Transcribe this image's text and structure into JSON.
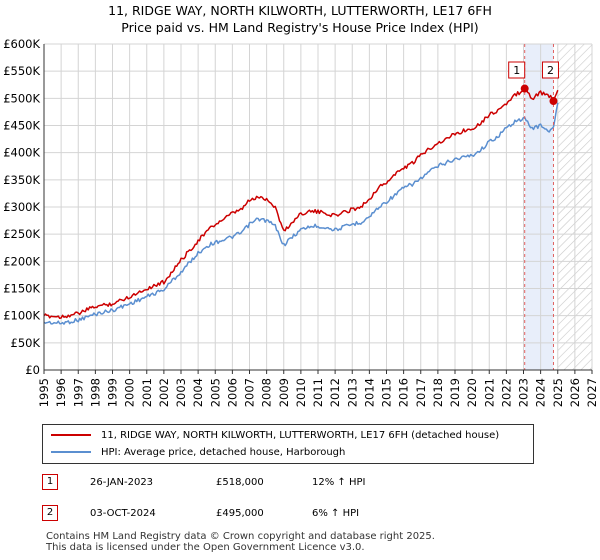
{
  "title_line1": "11, RIDGE WAY, NORTH KILWORTH, LUTTERWORTH, LE17 6FH",
  "title_line2": "Price paid vs. HM Land Registry's House Price Index (HPI)",
  "colors": {
    "property": "#cc0000",
    "hpi": "#5b8fd0",
    "shade": "#e8eefa",
    "grid": "#d4d4d4"
  },
  "chart_data": {
    "type": "line",
    "title": "11, RIDGE WAY, NORTH KILWORTH, LUTTERWORTH, LE17 6FH — Price paid vs. HM Land Registry's House Price Index (HPI)",
    "xlabel": "",
    "ylabel": "",
    "xlim": [
      1995,
      2027
    ],
    "ylim": [
      0,
      600000
    ],
    "x_ticks": [
      "1995",
      "1996",
      "1997",
      "1998",
      "1999",
      "2000",
      "2001",
      "2002",
      "2003",
      "2004",
      "2005",
      "2006",
      "2007",
      "2008",
      "2009",
      "2010",
      "2011",
      "2012",
      "2013",
      "2014",
      "2015",
      "2016",
      "2017",
      "2018",
      "2019",
      "2020",
      "2021",
      "2022",
      "2023",
      "2024",
      "2025",
      "2026",
      "2027"
    ],
    "y_ticks": [
      {
        "value": 0,
        "label": "£0"
      },
      {
        "value": 50000,
        "label": "£50K"
      },
      {
        "value": 100000,
        "label": "£100K"
      },
      {
        "value": 150000,
        "label": "£150K"
      },
      {
        "value": 200000,
        "label": "£200K"
      },
      {
        "value": 250000,
        "label": "£250K"
      },
      {
        "value": 300000,
        "label": "£300K"
      },
      {
        "value": 350000,
        "label": "£350K"
      },
      {
        "value": 400000,
        "label": "£400K"
      },
      {
        "value": 450000,
        "label": "£450K"
      },
      {
        "value": 500000,
        "label": "£500K"
      },
      {
        "value": 550000,
        "label": "£550K"
      },
      {
        "value": 600000,
        "label": "£600K"
      }
    ],
    "shaded_period": [
      2023.07,
      2024.75
    ],
    "forecast_from": 2025.0,
    "series": [
      {
        "name": "11, RIDGE WAY, NORTH KILWORTH, LUTTERWORTH, LE17 6FH (detached house)",
        "color": "#cc0000",
        "x": [
          1995.0,
          1996.0,
          1997.0,
          1998.0,
          1999.0,
          2000.0,
          2001.0,
          2002.0,
          2002.5,
          2003.0,
          2003.5,
          2004.0,
          2004.5,
          2005.0,
          2005.5,
          2006.0,
          2006.5,
          2007.0,
          2007.5,
          2008.0,
          2008.5,
          2009.0,
          2009.5,
          2010.0,
          2010.5,
          2011.0,
          2011.5,
          2012.0,
          2012.5,
          2013.0,
          2013.5,
          2014.0,
          2014.5,
          2015.0,
          2015.5,
          2016.0,
          2016.5,
          2017.0,
          2017.5,
          2018.0,
          2018.5,
          2019.0,
          2019.5,
          2020.0,
          2020.5,
          2021.0,
          2021.5,
          2022.0,
          2022.5,
          2023.07,
          2023.5,
          2024.0,
          2024.5,
          2024.75,
          2025.0
        ],
        "values": [
          100000,
          98000,
          104000,
          117000,
          122000,
          135000,
          150000,
          162000,
          182000,
          202000,
          220000,
          238000,
          255000,
          268000,
          278000,
          288000,
          295000,
          312000,
          318000,
          315000,
          300000,
          255000,
          272000,
          288000,
          292000,
          291000,
          288000,
          284000,
          290000,
          296000,
          300000,
          315000,
          335000,
          345000,
          360000,
          372000,
          380000,
          395000,
          408000,
          418000,
          425000,
          435000,
          440000,
          445000,
          455000,
          470000,
          478000,
          490000,
          505000,
          518000,
          500000,
          510000,
          505000,
          495000,
          515000
        ]
      },
      {
        "name": "HPI: Average price, detached house, Harborough",
        "color": "#5b8fd0",
        "x": [
          1995.0,
          1996.0,
          1997.0,
          1998.0,
          1999.0,
          2000.0,
          2001.0,
          2002.0,
          2002.5,
          2003.0,
          2003.5,
          2004.0,
          2004.5,
          2005.0,
          2005.5,
          2006.0,
          2006.5,
          2007.0,
          2007.5,
          2008.0,
          2008.5,
          2009.0,
          2009.5,
          2010.0,
          2010.5,
          2011.0,
          2011.5,
          2012.0,
          2012.5,
          2013.0,
          2013.5,
          2014.0,
          2014.5,
          2015.0,
          2015.5,
          2016.0,
          2016.5,
          2017.0,
          2017.5,
          2018.0,
          2018.5,
          2019.0,
          2019.5,
          2020.0,
          2020.5,
          2021.0,
          2021.5,
          2022.0,
          2022.5,
          2023.07,
          2023.5,
          2024.0,
          2024.5,
          2024.75,
          2025.0
        ],
        "values": [
          88000,
          86000,
          92000,
          103000,
          110000,
          122000,
          135000,
          148000,
          165000,
          180000,
          198000,
          215000,
          228000,
          235000,
          240000,
          245000,
          252000,
          268000,
          278000,
          275000,
          265000,
          230000,
          245000,
          258000,
          264000,
          265000,
          262000,
          258000,
          263000,
          268000,
          272000,
          282000,
          298000,
          310000,
          322000,
          335000,
          342000,
          352000,
          365000,
          375000,
          382000,
          388000,
          392000,
          395000,
          405000,
          420000,
          430000,
          445000,
          458000,
          462000,
          445000,
          450000,
          440000,
          445000,
          492000
        ]
      }
    ],
    "markers": [
      {
        "id": "1",
        "x": 2023.07,
        "value": 518000,
        "date": "26-JAN-2023",
        "price": "£518,000",
        "diff": "12% ↑ HPI"
      },
      {
        "id": "2",
        "x": 2024.75,
        "value": 495000,
        "date": "03-OCT-2024",
        "price": "£495,000",
        "diff": "6% ↑ HPI"
      }
    ]
  },
  "legend": {
    "items": [
      {
        "label": "11, RIDGE WAY, NORTH KILWORTH, LUTTERWORTH, LE17 6FH (detached house)",
        "color": "#cc0000"
      },
      {
        "label": "HPI: Average price, detached house, Harborough",
        "color": "#5b8fd0"
      }
    ]
  },
  "footer": {
    "line1": "Contains HM Land Registry data © Crown copyright and database right 2025.",
    "line2": "This data is licensed under the Open Government Licence v3.0."
  }
}
